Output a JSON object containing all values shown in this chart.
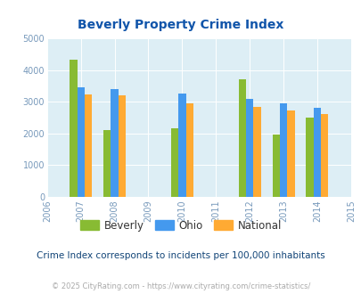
{
  "title": "Beverly Property Crime Index",
  "all_years": [
    2006,
    2007,
    2008,
    2009,
    2010,
    2011,
    2012,
    2013,
    2014,
    2015
  ],
  "data_years": [
    2007,
    2008,
    2010,
    2012,
    2013,
    2014
  ],
  "beverly": [
    4330,
    2100,
    2150,
    3720,
    1960,
    2490
  ],
  "ohio": [
    3440,
    3390,
    3250,
    3100,
    2950,
    2800
  ],
  "national": [
    3230,
    3200,
    2950,
    2850,
    2720,
    2600
  ],
  "bar_width": 0.22,
  "beverly_color": "#88bb33",
  "ohio_color": "#4499ee",
  "national_color": "#ffaa33",
  "bg_color": "#ddeef5",
  "ylim": [
    0,
    5000
  ],
  "yticks": [
    0,
    1000,
    2000,
    3000,
    4000,
    5000
  ],
  "tick_color": "#7799bb",
  "xlabel_note": "Crime Index corresponds to incidents per 100,000 inhabitants",
  "footer": "© 2025 CityRating.com - https://www.cityrating.com/crime-statistics/",
  "legend_labels": [
    "Beverly",
    "Ohio",
    "National"
  ]
}
